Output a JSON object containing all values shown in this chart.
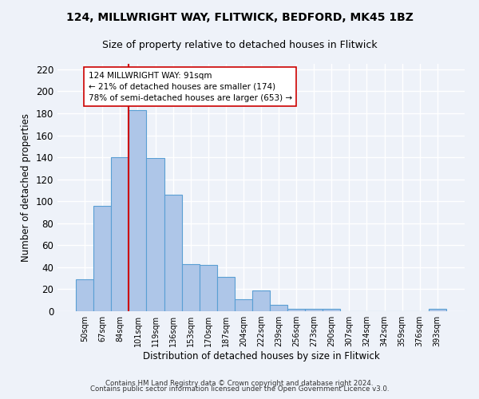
{
  "title1": "124, MILLWRIGHT WAY, FLITWICK, BEDFORD, MK45 1BZ",
  "title2": "Size of property relative to detached houses in Flitwick",
  "xlabel": "Distribution of detached houses by size in Flitwick",
  "ylabel": "Number of detached properties",
  "bar_labels": [
    "50sqm",
    "67sqm",
    "84sqm",
    "101sqm",
    "119sqm",
    "136sqm",
    "153sqm",
    "170sqm",
    "187sqm",
    "204sqm",
    "222sqm",
    "239sqm",
    "256sqm",
    "273sqm",
    "290sqm",
    "307sqm",
    "324sqm",
    "342sqm",
    "359sqm",
    "376sqm",
    "393sqm"
  ],
  "bar_values": [
    29,
    96,
    140,
    183,
    139,
    106,
    43,
    42,
    31,
    11,
    19,
    6,
    2,
    2,
    2,
    0,
    0,
    0,
    0,
    0,
    2
  ],
  "bar_color": "#aec6e8",
  "bar_edge_color": "#5a9fd4",
  "ylim": [
    0,
    225
  ],
  "yticks": [
    0,
    20,
    40,
    60,
    80,
    100,
    120,
    140,
    160,
    180,
    200,
    220
  ],
  "vline_color": "#cc0000",
  "annotation_text": "124 MILLWRIGHT WAY: 91sqm\n← 21% of detached houses are smaller (174)\n78% of semi-detached houses are larger (653) →",
  "annotation_box_color": "#ffffff",
  "annotation_box_edge": "#cc0000",
  "footer1": "Contains HM Land Registry data © Crown copyright and database right 2024.",
  "footer2": "Contains public sector information licensed under the Open Government Licence v3.0.",
  "bg_color": "#eef2f9"
}
